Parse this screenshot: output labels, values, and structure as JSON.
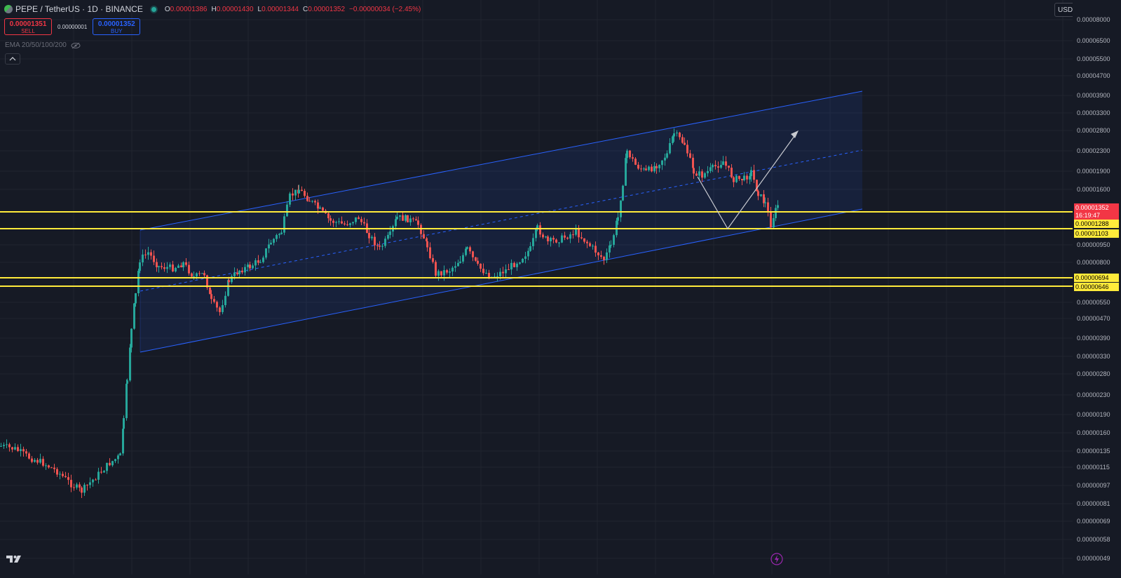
{
  "header": {
    "symbol": "PEPE / TetherUS · 1D · BINANCE",
    "ohlc": {
      "o_label": "O",
      "o_value": "0.00001386",
      "h_label": "H",
      "h_value": "0.00001430",
      "l_label": "L",
      "l_value": "0.00001344",
      "c_label": "C",
      "c_value": "0.00001352"
    },
    "change": "−0.00000034 (−2.45%)"
  },
  "trade": {
    "sell_price": "0.00001351",
    "sell_label": "SELL",
    "spread": "0.00000001",
    "buy_price": "0.00001352",
    "buy_label": "BUY"
  },
  "indicator": {
    "label": "EMA 20/50/100/200",
    "icon": "eye-off-icon"
  },
  "currency": {
    "selected": "USDT"
  },
  "price_axis": {
    "ticks": [
      "0.00008000",
      "0.00006500",
      "0.00005500",
      "0.00004700",
      "0.00003900",
      "0.00003300",
      "0.00002800",
      "0.00002300",
      "0.00001900",
      "0.00001600",
      "0.00000950",
      "0.00000800",
      "0.00000550",
      "0.00000470",
      "0.00000390",
      "0.00000330",
      "0.00000280",
      "0.00000230",
      "0.00000190",
      "0.00000160",
      "0.00000135",
      "0.00000115",
      "0.00000097",
      "0.00000081",
      "0.00000069",
      "0.00000058",
      "0.00000049"
    ],
    "current_price": "0.00001352",
    "countdown": "16:19:47",
    "levels": [
      "0.00001288",
      "0.00001103",
      "0.00000694",
      "0.00000646"
    ]
  },
  "colors": {
    "background": "#161a25",
    "up": "#26a69a",
    "down": "#ef5350",
    "channel": "#2962ff",
    "level": "#ffeb3b"
  },
  "footer": {
    "logo": "tradingview-logo-icon",
    "bolt": "bolt-icon"
  }
}
